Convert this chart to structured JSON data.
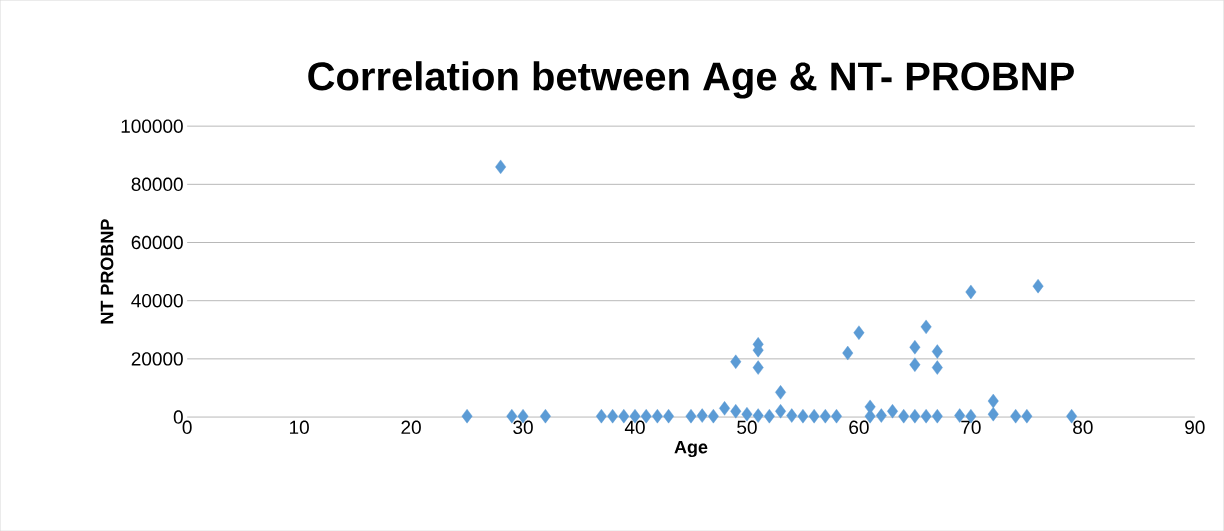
{
  "chart_data": {
    "type": "scatter",
    "title": "Correlation between Age & NT- PROBNP",
    "xlabel": "Age",
    "ylabel": "NT PROBNP",
    "xlim": [
      0,
      90
    ],
    "xticks": [
      0,
      10,
      20,
      30,
      40,
      50,
      60,
      70,
      80,
      90
    ],
    "ylim": [
      0,
      100000
    ],
    "yticks": [
      0,
      20000,
      40000,
      60000,
      80000,
      100000
    ],
    "grid": "y",
    "marker": "diamond",
    "series": [
      {
        "color": "#5b9bd5",
        "x": [
          25,
          28,
          29,
          30,
          32,
          37,
          38,
          39,
          40,
          41,
          42,
          43,
          45,
          46,
          47,
          48,
          49,
          49,
          50,
          51,
          51,
          51,
          51,
          52,
          53,
          53,
          54,
          55,
          56,
          57,
          58,
          59,
          60,
          61,
          61,
          62,
          63,
          64,
          65,
          65,
          65,
          66,
          66,
          67,
          67,
          67,
          69,
          70,
          70,
          72,
          72,
          74,
          75,
          76,
          79
        ],
        "values": [
          300,
          86000,
          300,
          300,
          300,
          300,
          300,
          300,
          300,
          300,
          300,
          300,
          300,
          500,
          300,
          3000,
          19000,
          2000,
          1000,
          25000,
          23000,
          17000,
          500,
          300,
          8500,
          2000,
          500,
          300,
          300,
          300,
          300,
          22000,
          29000,
          3500,
          300,
          500,
          2000,
          300,
          24000,
          18000,
          300,
          31000,
          300,
          22500,
          17000,
          300,
          500,
          43000,
          300,
          5500,
          1000,
          300,
          300,
          45000,
          300
        ]
      }
    ]
  }
}
